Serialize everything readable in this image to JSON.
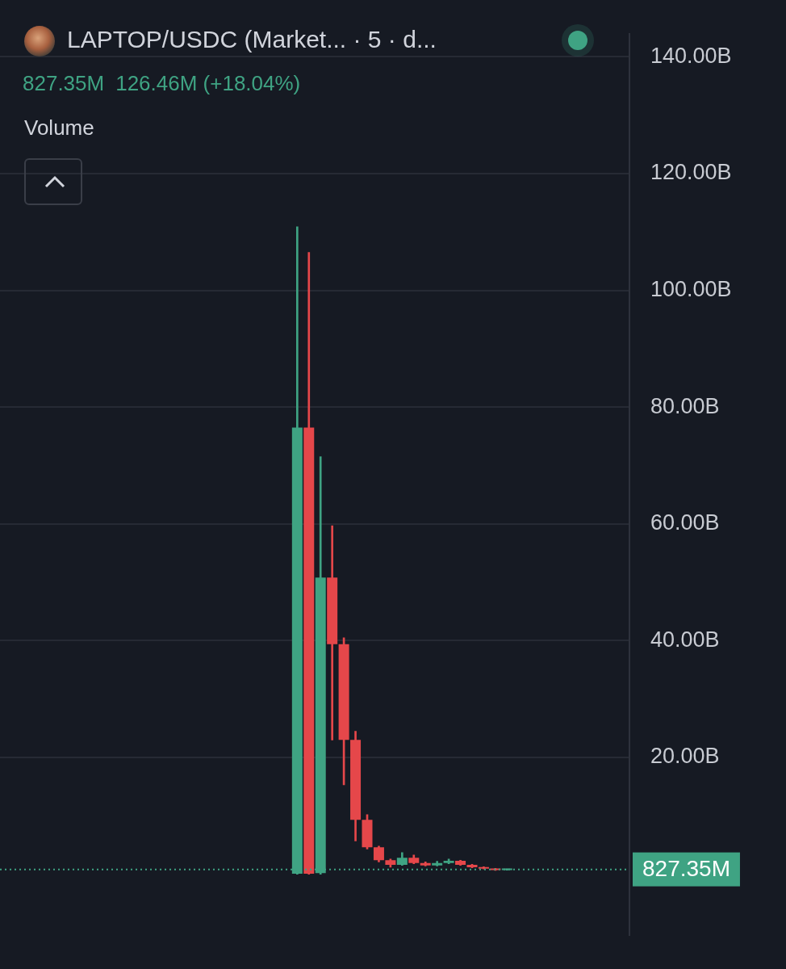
{
  "header": {
    "symbol": "LAPTOP/USDC (Market... · 5 · d...",
    "value": "827.35M",
    "change": "126.46M (+18.04%)",
    "indicator": "Volume"
  },
  "chart_data": {
    "type": "candlestick",
    "categories": [
      null,
      null,
      null,
      null,
      null,
      null,
      null,
      null,
      null,
      null,
      null,
      null,
      null,
      null,
      null,
      null,
      null,
      null,
      null,
      null,
      null,
      null,
      null,
      null,
      null,
      null,
      null,
      null,
      null,
      null,
      null,
      null,
      null,
      null,
      null,
      null,
      null,
      null,
      null,
      null,
      null,
      null,
      null,
      null,
      null,
      null,
      null,
      null,
      null,
      null,
      null,
      null,
      null,
      null
    ],
    "open": [
      null,
      null,
      null,
      null,
      null,
      null,
      null,
      null,
      null,
      null,
      null,
      null,
      null,
      null,
      null,
      null,
      null,
      null,
      null,
      null,
      null,
      null,
      null,
      null,
      null,
      0.1,
      76.5,
      0.2,
      50.8,
      39.4,
      23.0,
      9.3,
      4.6,
      2.4,
      1.6,
      2.8,
      1.9,
      1.5,
      1.9,
      2.3,
      1.6,
      1.2,
      0.95,
      0.7,
      null,
      null,
      null,
      null,
      null,
      null,
      null,
      null,
      null,
      null
    ],
    "high": [
      null,
      null,
      null,
      null,
      null,
      null,
      null,
      null,
      null,
      null,
      null,
      null,
      null,
      null,
      null,
      null,
      null,
      null,
      null,
      null,
      null,
      null,
      null,
      null,
      null,
      110.9,
      106.5,
      71.5,
      59.7,
      40.5,
      24.5,
      10.2,
      4.8,
      2.6,
      3.7,
      3.3,
      2.1,
      2.2,
      2.6,
      2.4,
      1.7,
      1.3,
      1.0,
      0.9,
      null,
      null,
      null,
      null,
      null,
      null,
      null,
      null,
      null,
      null
    ],
    "low": [
      null,
      null,
      null,
      null,
      null,
      null,
      null,
      null,
      null,
      null,
      null,
      null,
      null,
      null,
      null,
      null,
      null,
      null,
      null,
      null,
      null,
      null,
      null,
      null,
      null,
      0,
      0,
      0,
      23.0,
      15.3,
      5.7,
      4.3,
      2.1,
      1.2,
      1.5,
      1.8,
      1.4,
      1.4,
      1.8,
      1.5,
      1.1,
      0.9,
      0.65,
      0.68,
      null,
      null,
      null,
      null,
      null,
      null,
      null,
      null,
      null,
      null
    ],
    "close": [
      null,
      null,
      null,
      null,
      null,
      null,
      null,
      null,
      null,
      null,
      null,
      null,
      null,
      null,
      null,
      null,
      null,
      null,
      null,
      null,
      null,
      null,
      null,
      null,
      null,
      76.5,
      0.1,
      50.8,
      39.4,
      23.0,
      9.3,
      4.6,
      2.4,
      1.6,
      2.8,
      1.9,
      1.5,
      1.9,
      2.3,
      1.6,
      1.2,
      0.95,
      0.7,
      0.82735,
      null,
      null,
      null,
      null,
      null,
      null,
      null,
      null,
      null,
      null
    ],
    "colors": [
      null,
      null,
      null,
      null,
      null,
      null,
      null,
      null,
      null,
      null,
      null,
      null,
      null,
      null,
      null,
      null,
      null,
      null,
      null,
      null,
      null,
      null,
      null,
      null,
      null,
      "#3fa383",
      "#e5474a",
      "#3fa383",
      "#e5474a",
      "#e5474a",
      "#e5474a",
      "#e5474a",
      "#e5474a",
      "#e5474a",
      "#3fa383",
      "#e5474a",
      "#e5474a",
      "#3fa383",
      "#3fa383",
      "#e5474a",
      "#e5474a",
      "#e5474a",
      "#e5474a",
      "#3fa383",
      null,
      null,
      null,
      null,
      null,
      null,
      null,
      null,
      null,
      null
    ],
    "last_price": {
      "value": 0.82735,
      "label": "827.35M"
    },
    "ylim": [
      -10.4,
      143.9
    ],
    "yticks": [
      {
        "value": 20,
        "label": "20.00B"
      },
      {
        "value": 40,
        "label": "40.00B"
      },
      {
        "value": 60,
        "label": "60.00B"
      },
      {
        "value": 80,
        "label": "80.00B"
      },
      {
        "value": 100,
        "label": "100.00B"
      },
      {
        "value": 120,
        "label": "120.00B"
      },
      {
        "value": 140,
        "label": "140.00B"
      }
    ],
    "grid": true,
    "legend": false,
    "tick_labels": "y"
  }
}
